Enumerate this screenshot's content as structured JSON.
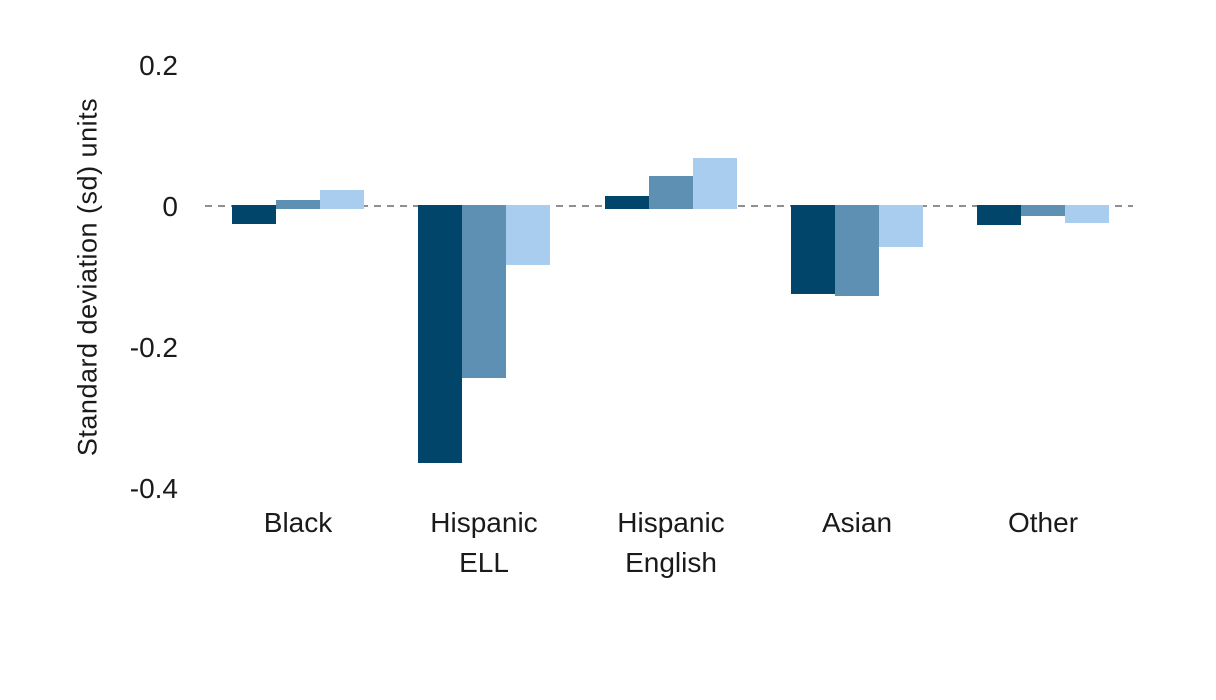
{
  "chart_data": {
    "type": "bar",
    "title": "",
    "xlabel": "",
    "ylabel": "Standard deviation (sd) units",
    "categories": [
      "Black",
      "Hispanic ELL",
      "Hispanic English",
      "Asian",
      "Other"
    ],
    "category_label_lines": [
      [
        "Black"
      ],
      [
        "Hispanic",
        "ELL"
      ],
      [
        "Hispanic",
        "English"
      ],
      [
        "Asian"
      ],
      [
        "Other"
      ]
    ],
    "series": [
      {
        "name": "bar-series-dark-blue",
        "color": "#01456a",
        "values": [
          -0.024,
          -0.363,
          0.016,
          -0.123,
          -0.026
        ]
      },
      {
        "name": "bar-series-medium-blue",
        "color": "#5e90b3",
        "values": [
          0.01,
          -0.242,
          0.044,
          -0.126,
          -0.013
        ]
      },
      {
        "name": "bar-series-light-blue",
        "color": "#a9cdee",
        "values": [
          0.024,
          -0.082,
          0.07,
          -0.057,
          -0.023
        ]
      }
    ],
    "yticks": [
      {
        "value": 0.2,
        "label": "0.2"
      },
      {
        "value": 0,
        "label": "0"
      },
      {
        "value": -0.2,
        "label": "-0.2"
      },
      {
        "value": -0.4,
        "label": "-0.4"
      }
    ],
    "ylim": [
      -0.45,
      0.25
    ],
    "legend_position": "none",
    "grid": "off",
    "zero_line": {
      "style": "dashed",
      "color": "#8f8f8f"
    }
  },
  "colors": {
    "background": "#ffffff",
    "text": "#1a1a1a",
    "zero_line": "#8f8f8f"
  }
}
